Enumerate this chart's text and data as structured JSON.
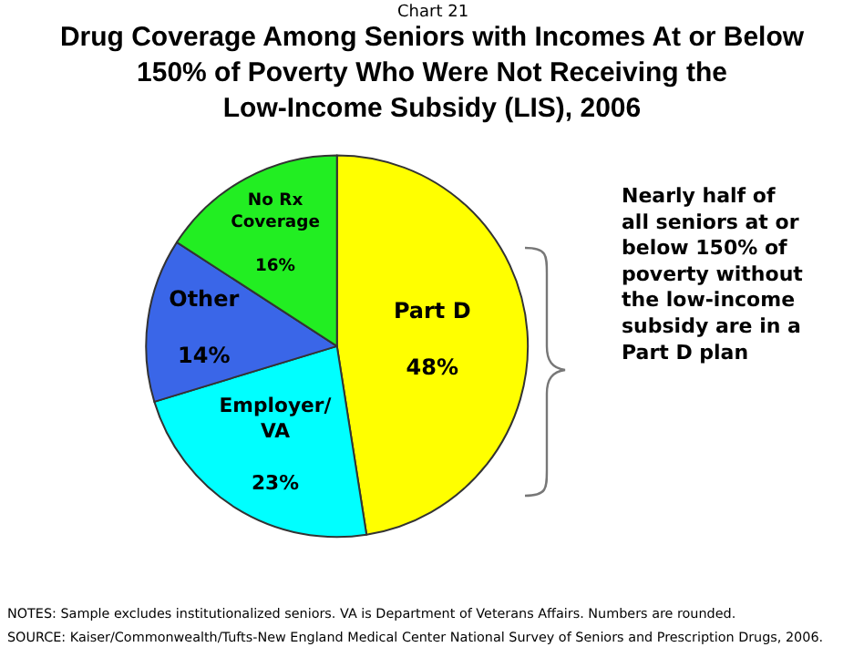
{
  "chart_data": {
    "type": "pie",
    "subtitle": "Chart 21",
    "title": "Drug Coverage Among Seniors with Incomes At or Below 150% of Poverty Who Were Not Receiving the Low-Income Subsidy (LIS), 2006",
    "categories": [
      "Part D",
      "Employer/VA",
      "Other",
      "No Rx Coverage"
    ],
    "values": [
      48,
      23,
      14,
      16
    ],
    "value_labels": [
      "48%",
      "23%",
      "14%",
      "16%"
    ],
    "colors": [
      "#ffff00",
      "#00ffff",
      "#3a66e8",
      "#22ee22"
    ],
    "legend": false,
    "annotations": [
      "Nearly half of all seniors at or below 150% of poverty without the low-income subsidy are in a Part D plan",
      "NOTES: Sample excludes institutionalized seniors. VA is Department of Veterans Affairs. Numbers are rounded.",
      "SOURCE: Kaiser/Commonwealth/Tufts-New England Medical Center National Survey of Seniors and Prescription Drugs, 2006."
    ]
  }
}
